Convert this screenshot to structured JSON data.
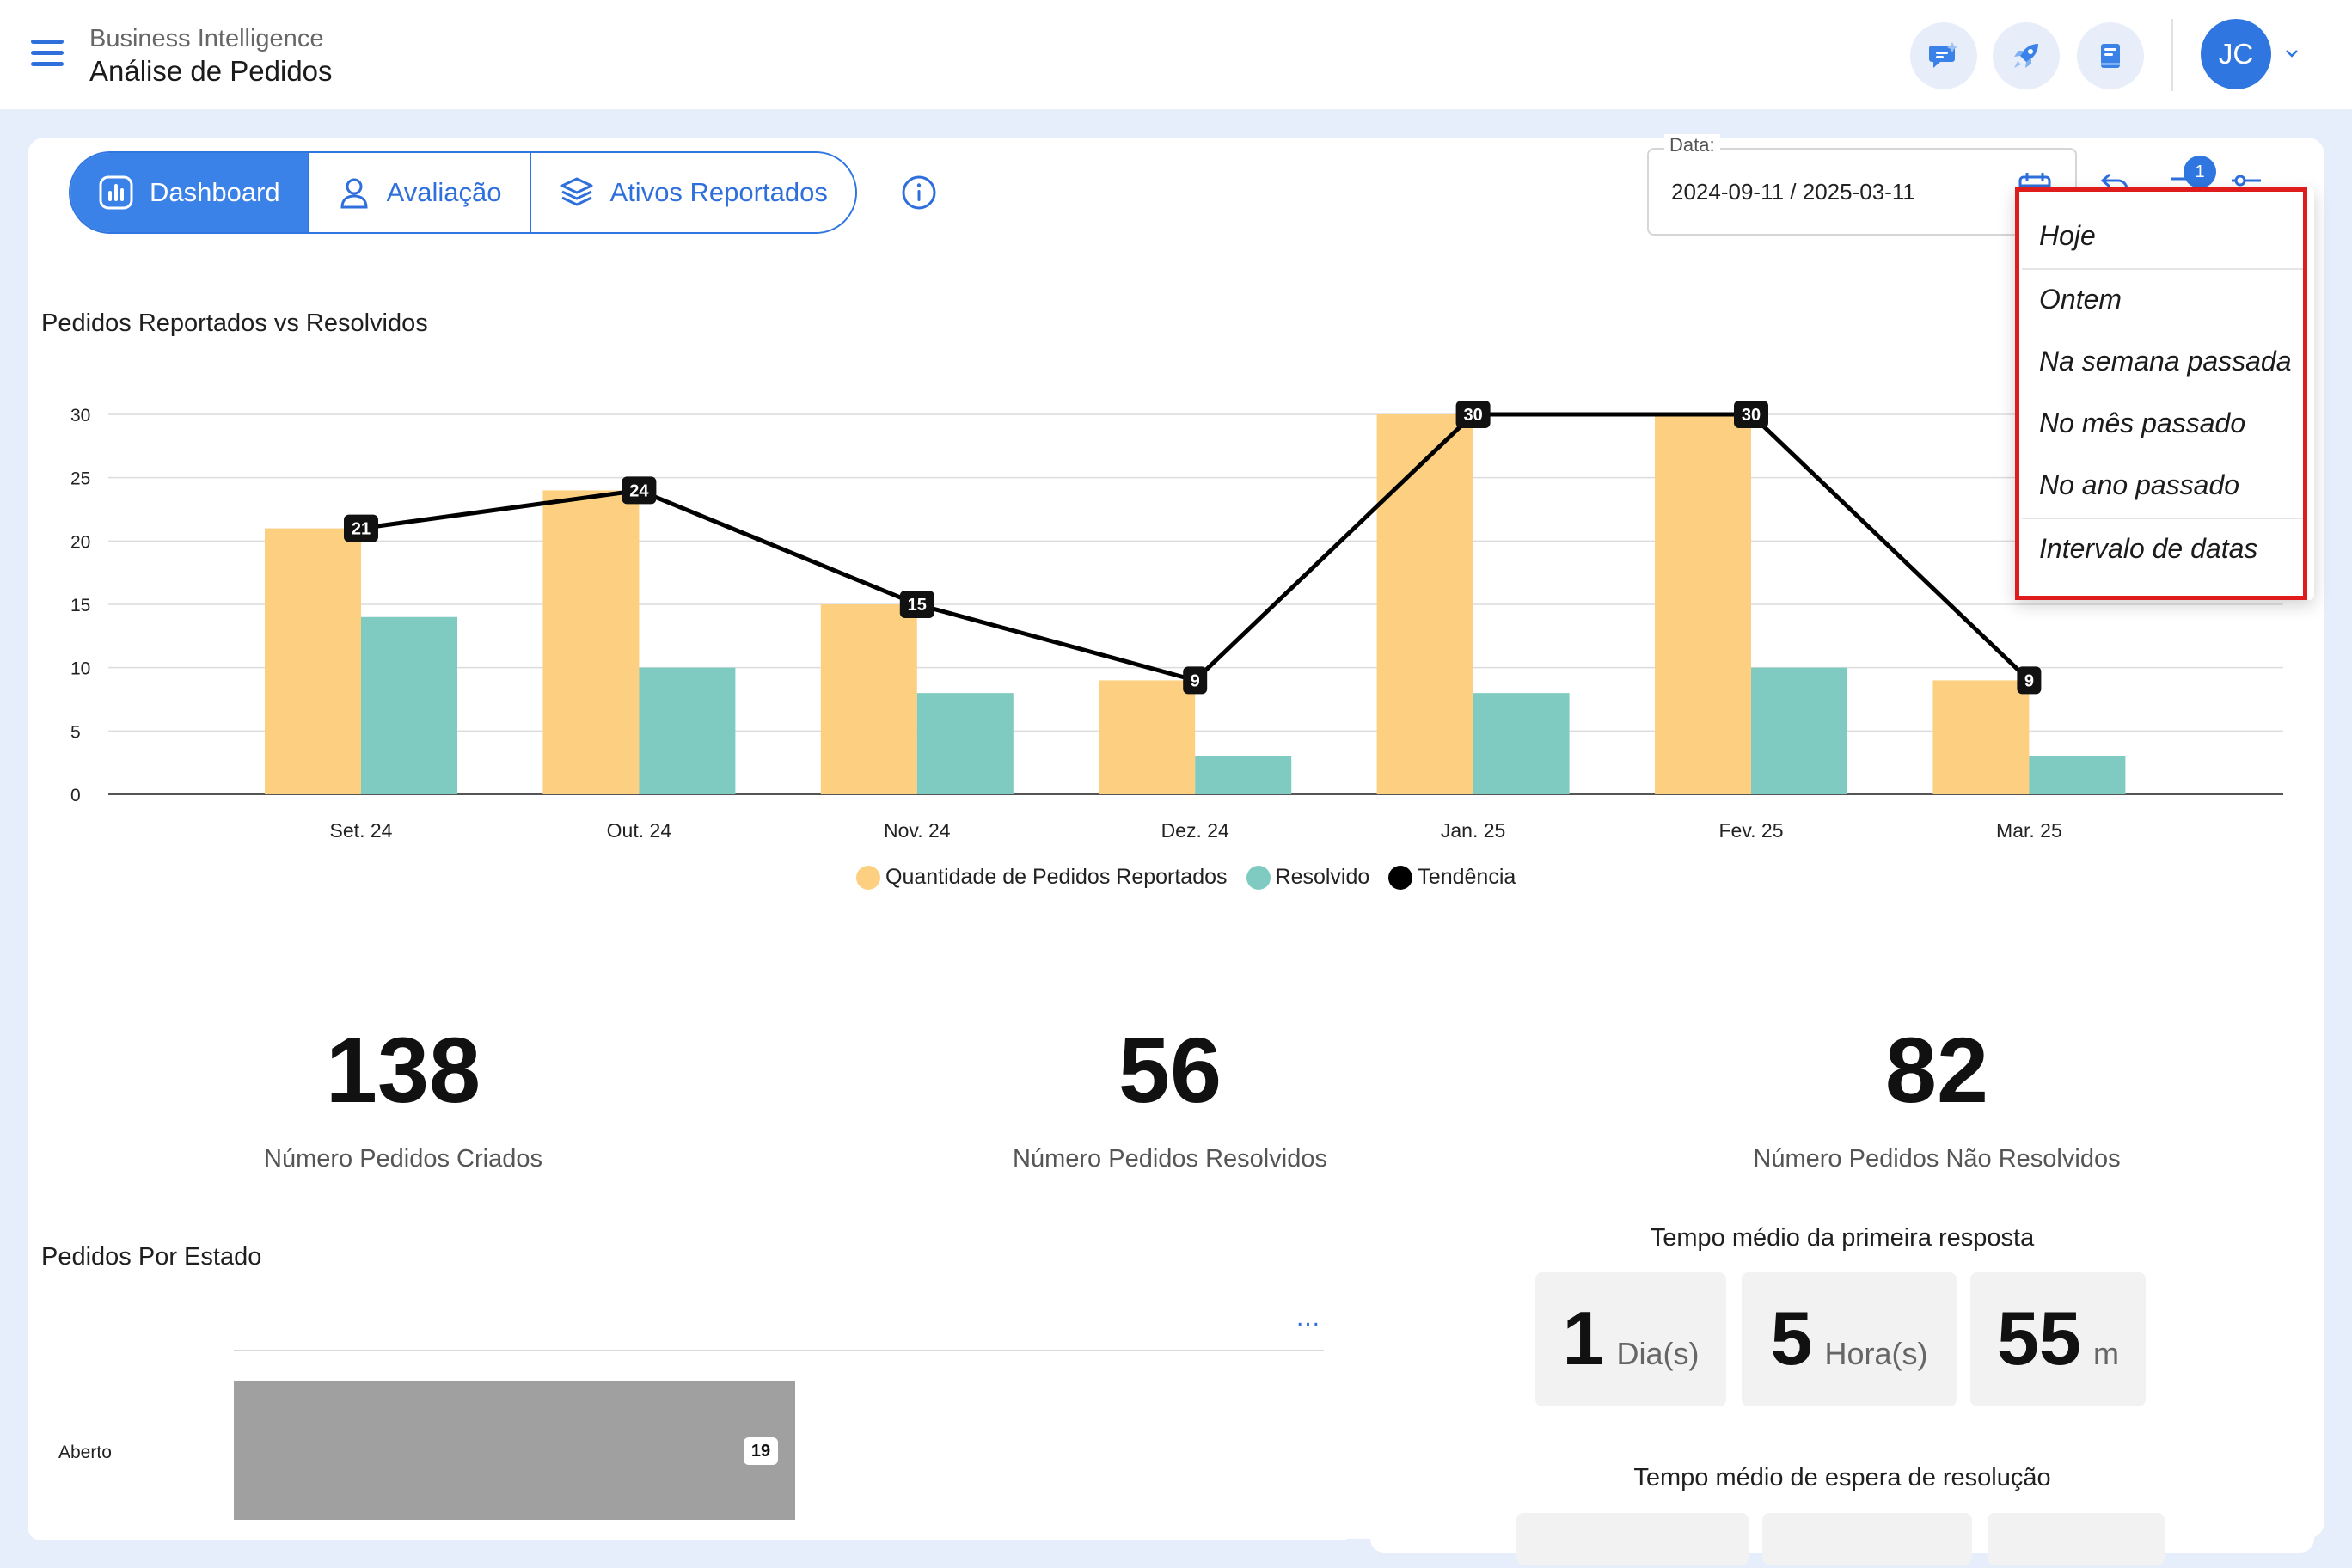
{
  "header": {
    "app_subtitle": "Business Intelligence",
    "app_title": "Análise de Pedidos",
    "buttons": [
      "ai-chat-icon",
      "rocket-icon",
      "book-icon"
    ],
    "user_initials": "JC"
  },
  "tabs": [
    {
      "label": "Dashboard",
      "icon": "chart-icon",
      "active": true
    },
    {
      "label": "Avaliação",
      "icon": "user-icon",
      "active": false
    },
    {
      "label": "Ativos Reportados",
      "icon": "layers-icon",
      "active": false
    }
  ],
  "date_filter": {
    "label": "Data:",
    "value": "2024-09-11 / 2025-03-11",
    "filter_badge": "1"
  },
  "dropdown": {
    "items": [
      "Hoje",
      "Ontem",
      "Na semana passada",
      "No mês passado",
      "No ano passado",
      "Intervalo de datas"
    ]
  },
  "chart_section": {
    "title": "Pedidos Reportados vs Resolvidos"
  },
  "chart_data": {
    "type": "bar",
    "title": "Pedidos Reportados vs Resolvidos",
    "categories": [
      "Set. 24",
      "Out. 24",
      "Nov. 24",
      "Dez. 24",
      "Jan. 25",
      "Fev. 25",
      "Mar. 25"
    ],
    "series": [
      {
        "name": "Quantidade de Pedidos Reportados",
        "type": "bar",
        "color": "#fdd081",
        "values": [
          21,
          24,
          15,
          9,
          30,
          30,
          9
        ]
      },
      {
        "name": "Resolvido",
        "type": "bar",
        "color": "#80cbc1",
        "values": [
          14,
          10,
          8,
          3,
          8,
          10,
          3
        ]
      },
      {
        "name": "Tendência",
        "type": "line",
        "color": "#000000",
        "values": [
          21,
          24,
          15,
          9,
          30,
          30,
          9
        ]
      }
    ],
    "yticks": [
      "0",
      "5",
      "10",
      "15",
      "20",
      "25",
      "30"
    ],
    "ylim": [
      0,
      30
    ],
    "grid": true,
    "legend_position": "bottom"
  },
  "kpis": [
    {
      "value": "138",
      "label": "Número Pedidos Criados"
    },
    {
      "value": "56",
      "label": "Número Pedidos Resolvidos"
    },
    {
      "value": "82",
      "label": "Número Pedidos Não Resolvidos"
    }
  ],
  "state_chart": {
    "title": "Pedidos Por Estado",
    "more": "...",
    "rows": [
      {
        "label": "Aberto",
        "value": 19,
        "fraction": 0.515
      }
    ]
  },
  "first_response": {
    "title": "Tempo médio da primeira resposta",
    "parts": [
      {
        "num": "1",
        "unit": "Dia(s)"
      },
      {
        "num": "5",
        "unit": "Hora(s)"
      },
      {
        "num": "55",
        "unit": "m"
      }
    ]
  },
  "resolution_wait": {
    "title": "Tempo médio de espera de resolução"
  }
}
